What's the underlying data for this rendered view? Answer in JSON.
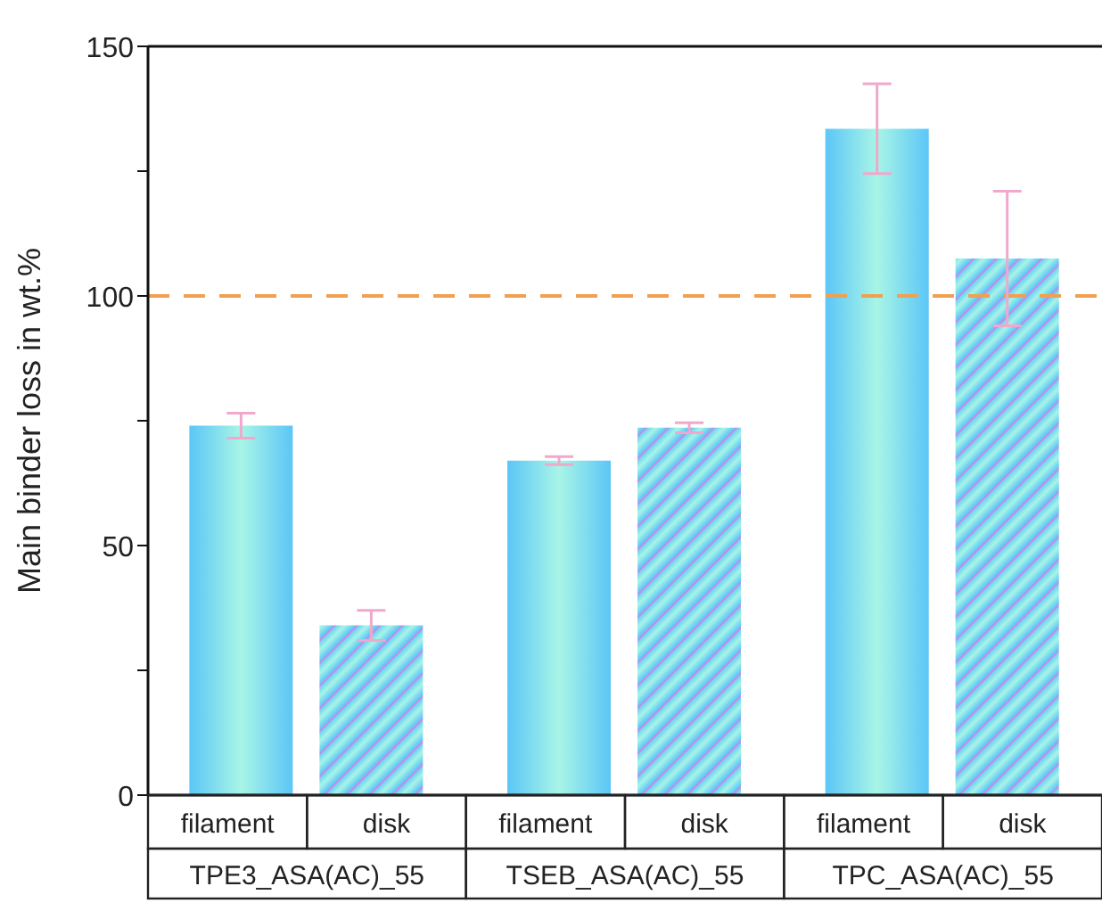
{
  "chart_data": {
    "type": "bar",
    "ylabel": "Main binder loss in wt.%",
    "categories": [
      "TPE3_ASA(AC)_55",
      "TSEB_ASA(AC)_55",
      "TPC_ASA(AC)_55"
    ],
    "series": [
      {
        "name": "filament",
        "color": "#5cc6f7",
        "values": [
          74,
          67,
          133.5
        ],
        "errors": [
          2.5,
          0.8,
          9
        ]
      },
      {
        "name": "disk",
        "color": "#5cc6f7",
        "values": [
          34,
          73.6,
          107.5
        ],
        "errors": [
          3,
          1,
          13.5
        ]
      }
    ],
    "ylim": [
      0,
      150
    ],
    "yticks": [
      0,
      {
        "value": 25,
        "label": null
      },
      50,
      {
        "value": 75,
        "label": null
      },
      100,
      {
        "value": 125,
        "label": null
      },
      150
    ],
    "ref_lines": [
      {
        "axis": "y",
        "value": 100,
        "label": null,
        "color": "#f0a050",
        "line_style": "dashed"
      }
    ],
    "grid": false,
    "legend": false
  }
}
